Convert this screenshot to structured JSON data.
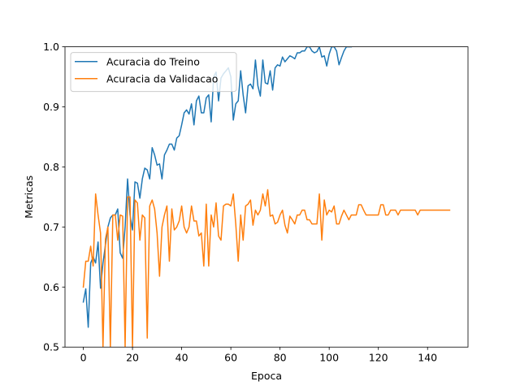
{
  "chart_data": {
    "type": "line",
    "title": "",
    "xlabel": "Epoca",
    "ylabel": "Metricas",
    "xlim": [
      -7.45,
      156.45
    ],
    "ylim": [
      0.5,
      1.0
    ],
    "xticks": [
      0,
      20,
      40,
      60,
      80,
      100,
      120,
      140
    ],
    "yticks": [
      0.5,
      0.6,
      0.7,
      0.8,
      0.9,
      1.0
    ],
    "ytick_labels": [
      "0.5",
      "0.6",
      "0.7",
      "0.8",
      "0.9",
      "1.0"
    ],
    "grid": false,
    "legend_position": "upper-left",
    "series": [
      {
        "name": "Acuracia do Treino",
        "color": "#1f77b4",
        "x": [
          0,
          1,
          2,
          3,
          4,
          5,
          6,
          7,
          8,
          9,
          10,
          11,
          12,
          13,
          14,
          15,
          16,
          17,
          18,
          19,
          20,
          21,
          22,
          23,
          24,
          25,
          26,
          27,
          28,
          29,
          30,
          31,
          32,
          33,
          34,
          35,
          36,
          37,
          38,
          39,
          40,
          41,
          42,
          43,
          44,
          45,
          46,
          47,
          48,
          49,
          50,
          51,
          52,
          53,
          54,
          55,
          56,
          57,
          58,
          59,
          60,
          61,
          62,
          63,
          64,
          65,
          66,
          67,
          68,
          69,
          70,
          71,
          72,
          73,
          74,
          75,
          76,
          77,
          78,
          79,
          80,
          81,
          82,
          83,
          84,
          85,
          86,
          87,
          88,
          89,
          90,
          91,
          92,
          93,
          94,
          95,
          96,
          97,
          98,
          99,
          100,
          101,
          102,
          103,
          104,
          105,
          106,
          107,
          108,
          109
        ],
        "values": [
          0.575,
          0.597,
          0.533,
          0.64,
          0.65,
          0.64,
          0.675,
          0.598,
          0.64,
          0.67,
          0.7,
          0.715,
          0.72,
          0.72,
          0.73,
          0.657,
          0.648,
          0.7,
          0.78,
          0.72,
          0.695,
          0.775,
          0.773,
          0.748,
          0.78,
          0.798,
          0.795,
          0.78,
          0.832,
          0.82,
          0.803,
          0.805,
          0.78,
          0.82,
          0.828,
          0.838,
          0.838,
          0.828,
          0.848,
          0.852,
          0.87,
          0.89,
          0.895,
          0.888,
          0.905,
          0.87,
          0.91,
          0.918,
          0.89,
          0.89,
          0.915,
          0.92,
          0.875,
          0.95,
          0.958,
          0.91,
          0.948,
          0.955,
          0.96,
          0.965,
          0.95,
          0.878,
          0.905,
          0.91,
          0.96,
          0.92,
          0.89,
          0.935,
          0.938,
          0.93,
          0.978,
          0.935,
          0.918,
          0.978,
          0.94,
          0.938,
          0.96,
          0.928,
          0.965,
          0.97,
          0.968,
          0.983,
          0.975,
          0.98,
          0.985,
          0.983,
          0.98,
          0.99,
          0.99,
          0.993,
          0.993,
          1.0,
          1.0,
          0.993,
          0.99,
          0.992,
          1.0,
          0.983,
          0.985,
          0.968,
          0.988,
          1.0,
          1.0,
          0.993,
          0.97,
          0.982,
          0.993,
          1.0,
          1.0,
          1.0
        ]
      },
      {
        "name": "Acuracia da Validacao",
        "color": "#ff7f0e",
        "x": [
          0,
          1,
          2,
          3,
          4,
          5,
          6,
          7,
          8,
          9,
          10,
          11,
          12,
          13,
          14,
          15,
          16,
          17,
          18,
          19,
          20,
          21,
          22,
          23,
          24,
          25,
          26,
          27,
          28,
          29,
          30,
          31,
          32,
          33,
          34,
          35,
          36,
          37,
          38,
          39,
          40,
          41,
          42,
          43,
          44,
          45,
          46,
          47,
          48,
          49,
          50,
          51,
          52,
          53,
          54,
          55,
          56,
          57,
          58,
          59,
          60,
          61,
          62,
          63,
          64,
          65,
          66,
          67,
          68,
          69,
          70,
          71,
          72,
          73,
          74,
          75,
          76,
          77,
          78,
          79,
          80,
          81,
          82,
          83,
          84,
          85,
          86,
          87,
          88,
          89,
          90,
          91,
          92,
          93,
          94,
          95,
          96,
          97,
          98,
          99,
          100,
          101,
          102,
          103,
          104,
          105,
          106,
          107,
          108,
          109,
          110,
          111,
          112,
          113,
          114,
          115,
          116,
          117,
          118,
          119,
          120,
          121,
          122,
          123,
          124,
          125,
          126,
          127,
          128,
          129,
          130,
          131,
          132,
          133,
          134,
          135,
          136,
          137,
          138,
          139,
          140,
          141,
          142,
          143,
          144,
          145,
          146,
          147,
          148,
          149
        ],
        "values": [
          0.6,
          0.643,
          0.643,
          0.668,
          0.635,
          0.755,
          0.72,
          0.69,
          0.5,
          0.68,
          0.7,
          0.5,
          0.72,
          0.72,
          0.678,
          0.72,
          0.718,
          0.5,
          0.75,
          0.75,
          0.5,
          0.745,
          0.74,
          0.678,
          0.72,
          0.715,
          0.515,
          0.735,
          0.745,
          0.73,
          0.69,
          0.618,
          0.7,
          0.72,
          0.735,
          0.643,
          0.73,
          0.695,
          0.7,
          0.71,
          0.735,
          0.7,
          0.69,
          0.7,
          0.735,
          0.71,
          0.71,
          0.685,
          0.69,
          0.635,
          0.738,
          0.635,
          0.72,
          0.7,
          0.74,
          0.685,
          0.678,
          0.735,
          0.738,
          0.738,
          0.735,
          0.755,
          0.705,
          0.643,
          0.72,
          0.678,
          0.735,
          0.738,
          0.745,
          0.703,
          0.728,
          0.72,
          0.728,
          0.755,
          0.735,
          0.762,
          0.718,
          0.72,
          0.705,
          0.708,
          0.72,
          0.728,
          0.703,
          0.69,
          0.718,
          0.712,
          0.705,
          0.72,
          0.72,
          0.728,
          0.728,
          0.712,
          0.712,
          0.705,
          0.705,
          0.705,
          0.755,
          0.678,
          0.745,
          0.72,
          0.728,
          0.725,
          0.735,
          0.705,
          0.705,
          0.718,
          0.728,
          0.72,
          0.712,
          0.72,
          0.72,
          0.72,
          0.737,
          0.737,
          0.728,
          0.72,
          0.72,
          0.72,
          0.72,
          0.72,
          0.72,
          0.737,
          0.737,
          0.72,
          0.72,
          0.728,
          0.728,
          0.728,
          0.72,
          0.728,
          0.728,
          0.728,
          0.728,
          0.728,
          0.728,
          0.728,
          0.72,
          0.728,
          0.728,
          0.728,
          0.728,
          0.728,
          0.728,
          0.728,
          0.728,
          0.728,
          0.728,
          0.728,
          0.728,
          0.728
        ]
      }
    ]
  }
}
